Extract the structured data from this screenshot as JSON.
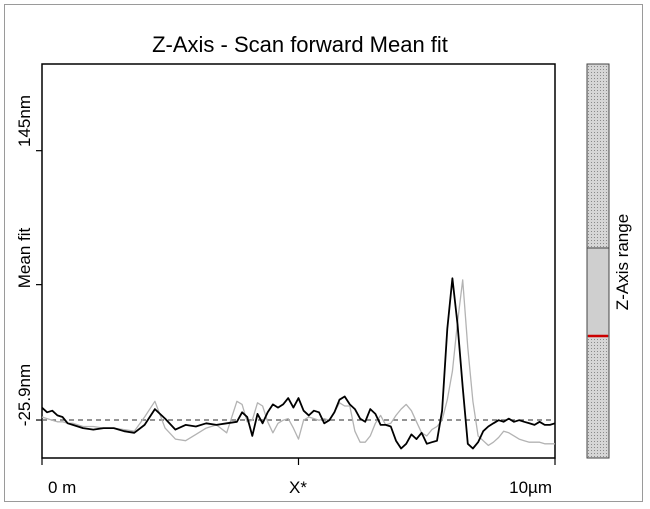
{
  "chart_data": {
    "type": "line",
    "title": "Z-Axis - Scan forward   Mean fit",
    "xlabel": "X*",
    "ylabel": "Mean fit",
    "x_tick_labels": [
      "0 m",
      "10µm"
    ],
    "y_tick_labels": [
      "-25.9nm",
      "145nm"
    ],
    "xlim": [
      0,
      10
    ],
    "ylim": [
      -50,
      200
    ],
    "grid": false,
    "colorbar_label": "Z-Axis range",
    "colors": {
      "forward": "#000000",
      "backward": "#b3b3b3",
      "mean_line": "#555555",
      "range_marker": "#cc0000"
    },
    "reference_line_y": -25.9,
    "series": [
      {
        "x": [
          0.0,
          0.1,
          0.2,
          0.3,
          0.4,
          0.5,
          0.6,
          0.8,
          1.0,
          1.2,
          1.4,
          1.6,
          1.8,
          2.0,
          2.2,
          2.4,
          2.6,
          2.8,
          3.0,
          3.2,
          3.4,
          3.6,
          3.8,
          3.9,
          4.0,
          4.1,
          4.2,
          4.3,
          4.4,
          4.5,
          4.6,
          4.7,
          4.8,
          4.9,
          5.0,
          5.1,
          5.2,
          5.3,
          5.4,
          5.5,
          5.6,
          5.7,
          5.8,
          5.9,
          6.0,
          6.1,
          6.2,
          6.3,
          6.4,
          6.5,
          6.6,
          6.7,
          6.8,
          6.9,
          7.0,
          7.1,
          7.2,
          7.3,
          7.4,
          7.5,
          7.6,
          7.7,
          7.8,
          7.9,
          8.0,
          8.1,
          8.2,
          8.3,
          8.4,
          8.5,
          8.6,
          8.7,
          8.8,
          8.9,
          9.0,
          9.1,
          9.2,
          9.3,
          9.4,
          9.5,
          9.6,
          9.7,
          9.8,
          9.9,
          10.0
        ],
        "values": [
          -18,
          -21,
          -20,
          -23,
          -24,
          -28,
          -29,
          -31,
          -32,
          -31,
          -31,
          -33,
          -34,
          -29,
          -19,
          -25,
          -32,
          -29,
          -30,
          -28,
          -29,
          -28,
          -27,
          -21,
          -24,
          -36,
          -22,
          -28,
          -21,
          -16,
          -18,
          -16,
          -12,
          -18,
          -12,
          -20,
          -23,
          -20,
          -21,
          -28,
          -26,
          -21,
          -13,
          -11,
          -16,
          -19,
          -25,
          -27,
          -19,
          -22,
          -29,
          -29,
          -30,
          -39,
          -44,
          -41,
          -35,
          -38,
          -34,
          -41,
          -40,
          -39,
          -20,
          32,
          64,
          35,
          -5,
          -41,
          -44,
          -40,
          -33,
          -30,
          -28,
          -26,
          -27,
          -25,
          -27,
          -26,
          -27,
          -28,
          -29,
          -27,
          -29,
          -29,
          -28
        ]
      },
      {
        "x": [
          0.0,
          0.1,
          0.2,
          0.3,
          0.4,
          0.5,
          0.6,
          0.8,
          1.0,
          1.2,
          1.4,
          1.6,
          1.8,
          2.0,
          2.2,
          2.4,
          2.6,
          2.8,
          3.0,
          3.2,
          3.4,
          3.6,
          3.8,
          3.9,
          4.0,
          4.1,
          4.2,
          4.3,
          4.4,
          4.5,
          4.6,
          4.7,
          4.8,
          4.9,
          5.0,
          5.1,
          5.2,
          5.3,
          5.4,
          5.5,
          5.6,
          5.7,
          5.8,
          5.9,
          6.0,
          6.1,
          6.2,
          6.3,
          6.4,
          6.5,
          6.6,
          6.7,
          6.8,
          6.9,
          7.0,
          7.1,
          7.2,
          7.3,
          7.4,
          7.5,
          7.6,
          7.7,
          7.8,
          7.9,
          8.0,
          8.1,
          8.2,
          8.3,
          8.4,
          8.5,
          8.6,
          8.7,
          8.8,
          8.9,
          9.0,
          9.1,
          9.2,
          9.3,
          9.4,
          9.5,
          9.6,
          9.7,
          9.8,
          9.9,
          10.0
        ],
        "values": [
          -24,
          -25,
          -26,
          -27,
          -27,
          -28,
          -28,
          -30,
          -30,
          -31,
          -31,
          -32,
          -33,
          -24,
          -14,
          -31,
          -38,
          -39,
          -35,
          -31,
          -29,
          -34,
          -14,
          -16,
          -27,
          -26,
          -15,
          -17,
          -27,
          -34,
          -28,
          -26,
          -25,
          -31,
          -38,
          -26,
          -24,
          -25,
          -26,
          -25,
          -26,
          -21,
          -15,
          -17,
          -17,
          -33,
          -40,
          -40,
          -36,
          -28,
          -23,
          -29,
          -28,
          -23,
          -19,
          -16,
          -20,
          -27,
          -34,
          -36,
          -32,
          -30,
          -26,
          -13,
          5,
          36,
          63,
          20,
          -14,
          -36,
          -39,
          -42,
          -40,
          -37,
          -33,
          -34,
          -36,
          -38,
          -39,
          -40,
          -40,
          -40,
          -41,
          -41,
          -41
        ]
      }
    ]
  }
}
